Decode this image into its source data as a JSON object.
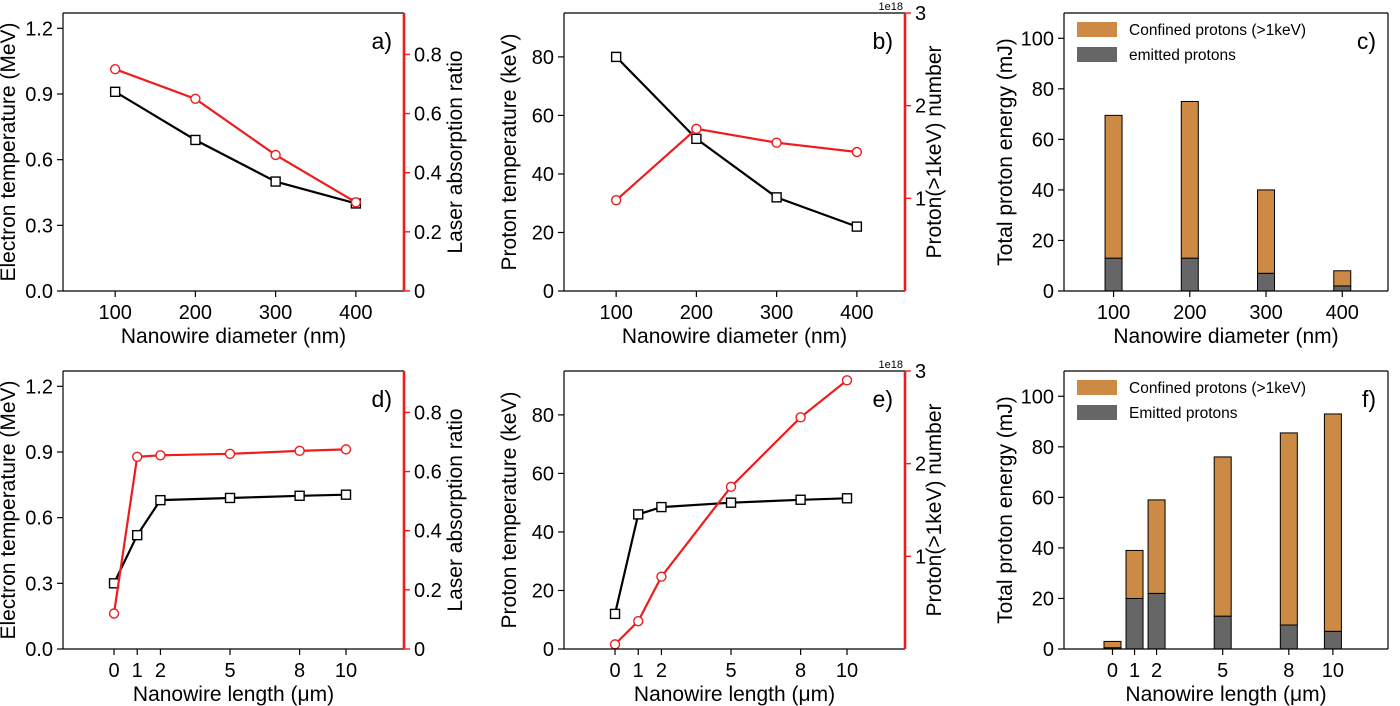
{
  "colors": {
    "primary": "#000000",
    "secondary": "#ee1c1c",
    "confined": "#cc8a45",
    "emitted": "#666666"
  },
  "chart_data": [
    {
      "panel": "a)",
      "type": "line",
      "xlabel": "Nanowire diameter (nm)",
      "xlim": [
        35,
        460
      ],
      "xticks": [
        100,
        200,
        300,
        400
      ],
      "ylabel": "Electron temperature (MeV)",
      "ylim": [
        0,
        1.27
      ],
      "yticks": [
        "0.0",
        "0.3",
        "0.6",
        "0.9",
        "1.2"
      ],
      "y2label": "Laser absorption ratio",
      "y2lim": [
        0,
        0.94
      ],
      "y2ticks": [
        "0",
        "0.2",
        "0.4",
        "0.6",
        "0.8"
      ],
      "series": [
        {
          "axis": "left",
          "marker": "square",
          "x": [
            100,
            200,
            300,
            400
          ],
          "values": [
            0.91,
            0.69,
            0.5,
            0.4
          ]
        },
        {
          "axis": "right",
          "marker": "circle",
          "x": [
            100,
            200,
            300,
            400
          ],
          "values": [
            0.75,
            0.65,
            0.46,
            0.3
          ]
        }
      ]
    },
    {
      "panel": "b)",
      "type": "line",
      "xlabel": "Nanowire diameter (nm)",
      "xlim": [
        35,
        460
      ],
      "xticks": [
        100,
        200,
        300,
        400
      ],
      "ylabel": "Proton temperature (keV)",
      "ylim": [
        0,
        95
      ],
      "yticks": [
        "0",
        "20",
        "40",
        "60",
        "80"
      ],
      "y2label": "Proton(>1keV) number",
      "y2lim": [
        0,
        3.0
      ],
      "y2ticks": [
        "1",
        "2",
        "3"
      ],
      "y2offset": "1e18",
      "series": [
        {
          "axis": "left",
          "marker": "square",
          "x": [
            100,
            200,
            300,
            400
          ],
          "values": [
            80,
            52,
            32,
            22
          ]
        },
        {
          "axis": "right",
          "marker": "circle",
          "x": [
            100,
            200,
            300,
            400
          ],
          "values": [
            0.98,
            1.75,
            1.6,
            1.5
          ]
        }
      ]
    },
    {
      "panel": "c)",
      "type": "bar",
      "stacked": true,
      "xlabel": "Nanowire diameter (nm)",
      "xlim": [
        35,
        460
      ],
      "categories": [
        "100",
        "200",
        "300",
        "400"
      ],
      "x": [
        100,
        200,
        300,
        400
      ],
      "ylabel": "Total proton energy (mJ)",
      "ylim": [
        0,
        110
      ],
      "yticks": [
        "0",
        "20",
        "40",
        "60",
        "80",
        "100"
      ],
      "legend_position": "top-left",
      "series": [
        {
          "name": "emitted protons",
          "kind": "emitted",
          "values": [
            13,
            13,
            7,
            2
          ]
        },
        {
          "name": "Confined protons (>1keV)",
          "kind": "confined",
          "values": [
            56.5,
            62,
            33,
            6
          ]
        }
      ]
    },
    {
      "panel": "d)",
      "type": "line",
      "xlabel": "Nanowire length (μm)",
      "xlim": [
        -2.2,
        12.5
      ],
      "xticks": [
        0,
        1,
        2,
        5,
        8,
        10
      ],
      "ylabel": "Electron temperature (MeV)",
      "ylim": [
        0,
        1.27
      ],
      "yticks": [
        "0.0",
        "0.3",
        "0.6",
        "0.9",
        "1.2"
      ],
      "y2label": "Laser absorption ratio",
      "y2lim": [
        0,
        0.94
      ],
      "y2ticks": [
        "0",
        "0.2",
        "0.4",
        "0.6",
        "0.8"
      ],
      "series": [
        {
          "axis": "left",
          "marker": "square",
          "x": [
            0,
            1,
            2,
            5,
            8,
            10
          ],
          "values": [
            0.3,
            0.52,
            0.68,
            0.69,
            0.7,
            0.705
          ]
        },
        {
          "axis": "right",
          "marker": "circle",
          "x": [
            0,
            1,
            2,
            5,
            8,
            10
          ],
          "values": [
            0.12,
            0.65,
            0.655,
            0.66,
            0.67,
            0.675
          ]
        }
      ]
    },
    {
      "panel": "e)",
      "type": "line",
      "xlabel": "Nanowire length (μm)",
      "xlim": [
        -2.2,
        12.5
      ],
      "xticks": [
        0,
        1,
        2,
        5,
        8,
        10
      ],
      "ylabel": "Proton temperature (keV)",
      "ylim": [
        0,
        95
      ],
      "yticks": [
        "0",
        "20",
        "40",
        "60",
        "80"
      ],
      "y2label": "Proton(>1keV) number",
      "y2lim": [
        0,
        3.0
      ],
      "y2ticks": [
        "1",
        "2",
        "3"
      ],
      "y2offset": "1e18",
      "series": [
        {
          "axis": "left",
          "marker": "square",
          "x": [
            0,
            1,
            2,
            5,
            8,
            10
          ],
          "values": [
            12,
            46,
            48.5,
            50,
            51,
            51.5
          ]
        },
        {
          "axis": "right",
          "marker": "circle",
          "x": [
            0,
            1,
            2,
            5,
            8,
            10
          ],
          "values": [
            0.05,
            0.3,
            0.78,
            1.75,
            2.5,
            2.9
          ]
        }
      ]
    },
    {
      "panel": "f)",
      "type": "bar",
      "stacked": true,
      "xlabel": "Nanowire length (μm)",
      "xlim": [
        -2.2,
        12.5
      ],
      "categories": [
        "0",
        "1",
        "2",
        "5",
        "8",
        "10"
      ],
      "x": [
        0,
        1,
        2,
        5,
        8,
        10
      ],
      "ylabel": "Total proton energy (mJ)",
      "ylim": [
        0,
        110
      ],
      "yticks": [
        "0",
        "20",
        "40",
        "60",
        "80",
        "100"
      ],
      "legend_position": "top-left",
      "series": [
        {
          "name": "Emitted protons",
          "kind": "emitted",
          "values": [
            0.5,
            20,
            22,
            13,
            9.5,
            7
          ]
        },
        {
          "name": "Confined protons (>1keV)",
          "kind": "confined",
          "values": [
            2.5,
            19,
            37,
            63,
            76,
            86
          ]
        }
      ]
    }
  ]
}
